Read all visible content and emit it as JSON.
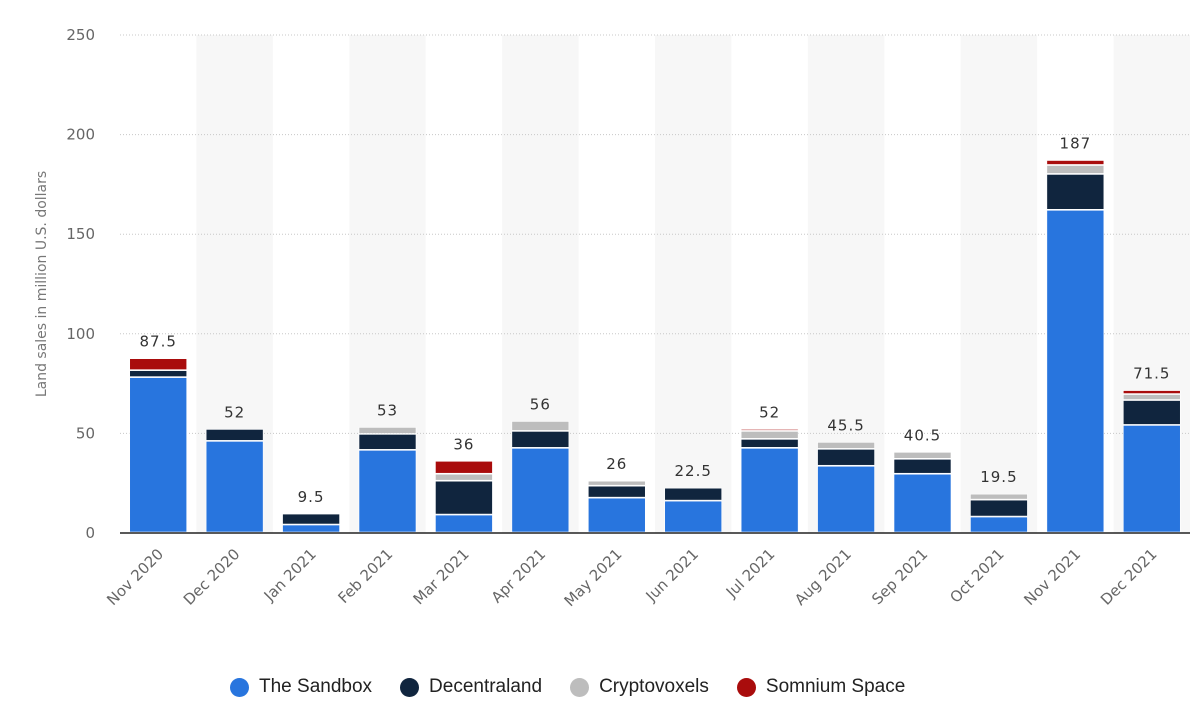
{
  "chart_data": {
    "type": "bar",
    "stacked": true,
    "title": "",
    "xlabel": "",
    "ylabel": "Land sales in million U.S. dollars",
    "ylim": [
      0,
      250
    ],
    "yticks": [
      0,
      50,
      100,
      150,
      200,
      250
    ],
    "grid": true,
    "legend_position": "bottom",
    "categories": [
      "Nov 2020",
      "Dec 2020",
      "Jan 2021",
      "Feb 2021",
      "Mar 2021",
      "Apr 2021",
      "May 2021",
      "Jun 2021",
      "Jul 2021",
      "Aug 2021",
      "Sep 2021",
      "Oct 2021",
      "Nov 2021",
      "Dec 2021"
    ],
    "totals": [
      "87.5",
      "52",
      "9.5",
      "53",
      "36",
      "56",
      "26",
      "22.5",
      "52",
      "45.5",
      "40.5",
      "19.5",
      "187",
      "71.5"
    ],
    "series": [
      {
        "name": "The Sandbox",
        "color": "#2875de",
        "values": [
          78,
          46,
          4,
          41.5,
          9,
          42.5,
          17.5,
          16,
          42.5,
          33.5,
          29.5,
          8,
          162,
          54
        ]
      },
      {
        "name": "Decentraland",
        "color": "#10253e",
        "values": [
          3.5,
          6,
          5.5,
          8,
          17,
          8.5,
          6,
          6.5,
          4.5,
          8.5,
          7.5,
          8.5,
          18,
          12.5
        ]
      },
      {
        "name": "Cryptovoxels",
        "color": "#bdbdbd",
        "values": [
          0,
          0,
          0,
          3.5,
          3.5,
          5,
          2.5,
          0,
          4,
          3.5,
          3.5,
          3,
          4.5,
          3
        ]
      },
      {
        "name": "Somnium Space",
        "color": "#a90c0c",
        "values": [
          6,
          0,
          0,
          0,
          6.5,
          0,
          0,
          0,
          1,
          0,
          0,
          0,
          2.5,
          2
        ]
      }
    ]
  }
}
